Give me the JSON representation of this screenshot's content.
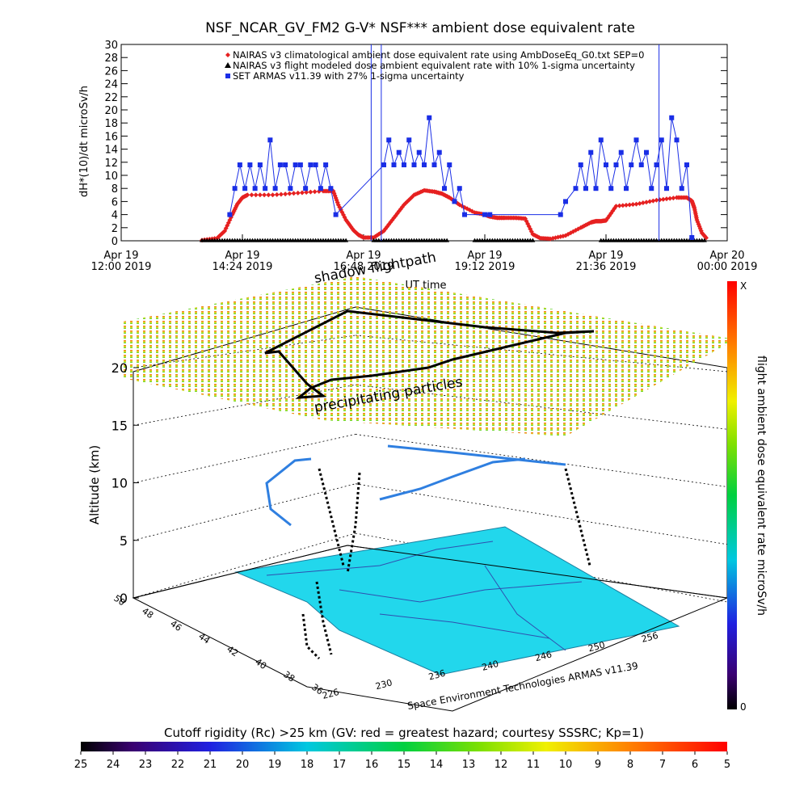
{
  "title": "NSF_NCAR_GV_FM2 G-V* NSF*** ambient dose equivalent rate",
  "colors": {
    "nairas_climatological": "#e62020",
    "nairas_flight": "#000000",
    "armas": "#1a2ee6",
    "ground": "#22d7ec",
    "shadow_flightpath": "#000000"
  },
  "chart_data": [
    {
      "type": "line",
      "title": "NSF_NCAR_GV_FM2 G-V* NSF*** ambient dose equivalent rate",
      "ylabel": "dH*(10)/dt microSv/h",
      "xlabel": "UT time",
      "ylim": [
        0,
        30
      ],
      "yticks": [
        0,
        2,
        4,
        6,
        8,
        10,
        12,
        14,
        16,
        18,
        20,
        22,
        24,
        26,
        28,
        30
      ],
      "xlim_hours": [
        12.0,
        24.0
      ],
      "xticks": [
        {
          "h": 12.0,
          "l1": "Apr 19",
          "l2": "12:00 2019"
        },
        {
          "h": 14.4,
          "l1": "Apr 19",
          "l2": "14:24 2019"
        },
        {
          "h": 16.8,
          "l1": "Apr 19",
          "l2": "16:48 2019"
        },
        {
          "h": 19.2,
          "l1": "Apr 19",
          "l2": "19:12 2019"
        },
        {
          "h": 21.6,
          "l1": "Apr 19",
          "l2": "21:36 2019"
        },
        {
          "h": 24.0,
          "l1": "Apr 20",
          "l2": "00:00 2019"
        }
      ],
      "legend": [
        {
          "marker": "diamond",
          "label": "NAIRAS v3 climatological ambient dose equivalent rate using AmbDoseEq_G0.txt SEP=0"
        },
        {
          "marker": "triangle",
          "label": "NAIRAS v3 flight modeled dose ambient equivalent rate with 10% 1-sigma uncertainty"
        },
        {
          "marker": "square",
          "label": "SET ARMAS v11.39 with 27% 1-sigma uncertainty"
        }
      ],
      "legend_position": "top-right",
      "series": [
        {
          "name": "NAIRAS v3 climatological ambient dose equivalent rate using AmbDoseEq_G0.txt SEP=0",
          "x": [
            13.6,
            13.9,
            14.05,
            14.2,
            14.3,
            14.4,
            14.5,
            15.0,
            15.5,
            16.0,
            16.2,
            16.3,
            16.45,
            16.6,
            16.7,
            16.8,
            17.0,
            17.2,
            17.4,
            17.6,
            17.8,
            18.0,
            18.2,
            18.35,
            18.5,
            18.7,
            19.0,
            19.2,
            19.3,
            19.45,
            19.6,
            19.8,
            20.0,
            20.15,
            20.3,
            20.5,
            20.8,
            21.1,
            21.3,
            21.4,
            21.5,
            21.6,
            21.8,
            22.2,
            22.6,
            23.0,
            23.2,
            23.3,
            23.35,
            23.4,
            23.5,
            23.6
          ],
          "y": [
            0.1,
            0.4,
            1.5,
            4.0,
            5.6,
            6.6,
            7.0,
            7.0,
            7.3,
            7.6,
            7.6,
            5.5,
            3.2,
            1.6,
            0.9,
            0.5,
            0.5,
            1.5,
            3.5,
            5.5,
            7.0,
            7.7,
            7.5,
            7.2,
            6.6,
            5.5,
            4.3,
            4.0,
            3.7,
            3.5,
            3.5,
            3.5,
            3.4,
            1.0,
            0.4,
            0.3,
            0.8,
            2.0,
            2.8,
            3.0,
            3.0,
            3.1,
            5.3,
            5.6,
            6.2,
            6.6,
            6.6,
            6.1,
            5.0,
            3.2,
            1.2,
            0.3
          ]
        },
        {
          "name": "NAIRAS v3 flight modeled dose ambient equivalent rate with 10% 1-sigma uncertainty",
          "x": [
            13.6,
            16.5,
            17.0,
            18.5,
            19.0,
            20.2,
            21.5,
            23.6
          ],
          "y": [
            0.05,
            0.05,
            0.05,
            0.05,
            0.05,
            0.05,
            0.05,
            0.05
          ]
        },
        {
          "name": "SET ARMAS v11.39 with 27% 1-sigma uncertainty",
          "x": [
            14.15,
            14.25,
            14.35,
            14.45,
            14.55,
            14.65,
            14.75,
            14.85,
            14.95,
            15.05,
            15.15,
            15.25,
            15.35,
            15.45,
            15.55,
            15.65,
            15.75,
            15.85,
            15.95,
            16.05,
            16.15,
            16.25,
            17.2,
            17.3,
            17.4,
            17.5,
            17.6,
            17.7,
            17.8,
            17.9,
            18.0,
            18.1,
            18.2,
            18.3,
            18.4,
            18.5,
            18.6,
            18.7,
            18.8,
            19.2,
            19.3,
            20.7,
            20.8,
            21.0,
            21.1,
            21.2,
            21.3,
            21.4,
            21.5,
            21.6,
            21.7,
            21.8,
            21.9,
            22.0,
            22.1,
            22.2,
            22.3,
            22.4,
            22.5,
            22.6,
            22.7,
            22.8,
            22.9,
            23.0,
            23.1,
            23.2,
            23.3
          ],
          "y": [
            4,
            8,
            11.6,
            8,
            11.6,
            8,
            11.6,
            8,
            15.4,
            8,
            11.6,
            11.6,
            8,
            11.6,
            11.6,
            8,
            11.6,
            11.6,
            8,
            11.6,
            8,
            4,
            11.6,
            15.4,
            11.6,
            13.5,
            11.6,
            15.4,
            11.6,
            13.5,
            11.6,
            18.8,
            11.6,
            13.5,
            8,
            11.6,
            6,
            8,
            4,
            4,
            4,
            4,
            6,
            8,
            11.6,
            8,
            13.5,
            8,
            15.4,
            11.6,
            8,
            11.6,
            13.5,
            8,
            11.6,
            15.4,
            11.6,
            13.5,
            8,
            11.6,
            15.4,
            8,
            18.8,
            15.4,
            8,
            11.6,
            0.5
          ]
        }
      ]
    },
    {
      "type": "scatter",
      "chart": "3d-perspective",
      "labels": {
        "shadow_flightpath": "shadow flightpath",
        "precipitating_particles": "precipitating particles",
        "credit": "Space Environment Technologies ARMAS v11.39"
      },
      "zlabel": "Altitude (km)",
      "zticks": [
        0,
        5,
        10,
        15,
        20
      ],
      "lat_ticks": [
        "36",
        "38",
        "40",
        "42",
        "44",
        "46",
        "48",
        "50"
      ],
      "lon_ticks": [
        "226",
        "230",
        "236",
        "240",
        "246",
        "250",
        "256"
      ]
    },
    {
      "type": "heatmap",
      "colorbar": "dose",
      "label": "flight ambient dose equivalent rate microSv/h",
      "top_label": "X",
      "bottom_label": "0"
    },
    {
      "type": "heatmap",
      "colorbar": "cutoff-rigidity",
      "label": "Cutoff rigidity (Rc) >25 km (GV: red = greatest hazard; courtesy SSSRC; Kp=1)",
      "ticks": [
        "25",
        "24",
        "23",
        "22",
        "21",
        "20",
        "19",
        "18",
        "17",
        "16",
        "15",
        "14",
        "13",
        "12",
        "11",
        "10",
        "9",
        "8",
        "7",
        "6",
        "5"
      ]
    }
  ]
}
